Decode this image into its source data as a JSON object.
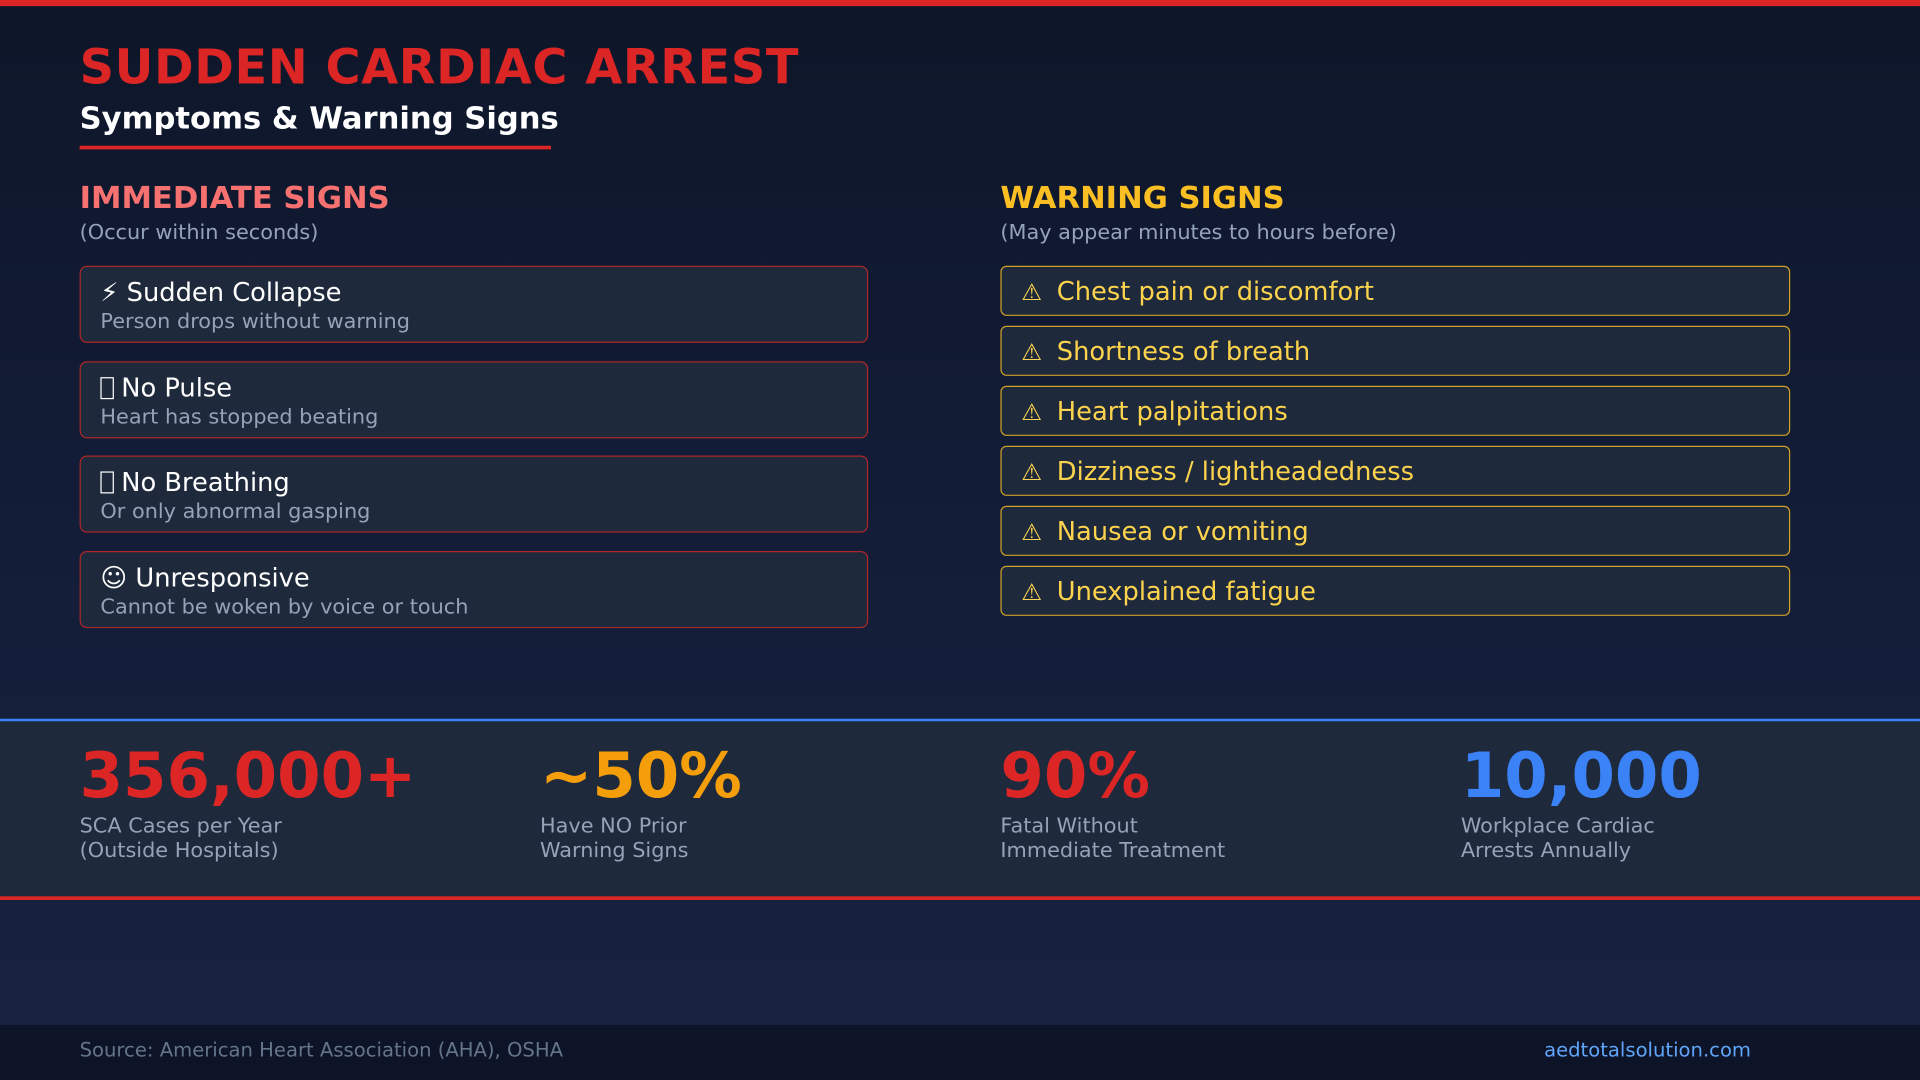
{
  "header": {
    "title": "SUDDEN CARDIAC ARREST",
    "subtitle": "Symptoms & Warning Signs"
  },
  "immediate": {
    "heading": "IMMEDIATE SIGNS",
    "subheading": "(Occur within seconds)",
    "items": [
      {
        "icon": "lightning-icon",
        "glyph": "⚡",
        "title": "Sudden Collapse",
        "desc": "Person drops without warning"
      },
      {
        "icon": "heart-icon",
        "glyph": "",
        "title": "No Pulse",
        "desc": "Heart has stopped beating"
      },
      {
        "icon": "lungs-icon",
        "glyph": "",
        "title": "No Breathing",
        "desc": "Or only abnormal gasping"
      },
      {
        "icon": "face-icon",
        "glyph": "☺",
        "title": "Unresponsive",
        "desc": "Cannot be woken by voice or touch"
      }
    ]
  },
  "warning": {
    "heading": "WARNING SIGNS",
    "subheading": "(May appear minutes to hours before)",
    "icon": "warning-icon",
    "glyph": "⚠",
    "items": [
      "Chest pain or discomfort",
      "Shortness of breath",
      "Heart palpitations",
      "Dizziness / lightheadedness",
      "Nausea or vomiting",
      "Unexplained fatigue"
    ]
  },
  "stats": [
    {
      "value": "356,000+",
      "line1": "SCA Cases per Year",
      "line2": "(Outside Hospitals)",
      "color": "#dc2626"
    },
    {
      "value": "~50%",
      "line1": "Have NO Prior",
      "line2": "Warning Signs",
      "color": "#f59e0b"
    },
    {
      "value": "90%",
      "line1": "Fatal Without",
      "line2": "Immediate Treatment",
      "color": "#dc2626"
    },
    {
      "value": "10,000",
      "line1": "Workplace Cardiac",
      "line2": "Arrests Annually",
      "color": "#3b82f6"
    }
  ],
  "footer": {
    "source": "Source: American Heart Association (AHA), OSHA",
    "site": "aedtotalsolution.com"
  },
  "colors": {
    "accent_red": "#dc2626",
    "immediate_heading": "#f87171",
    "warning_heading": "#fbbf24",
    "warning_text": "#fcd34d"
  }
}
